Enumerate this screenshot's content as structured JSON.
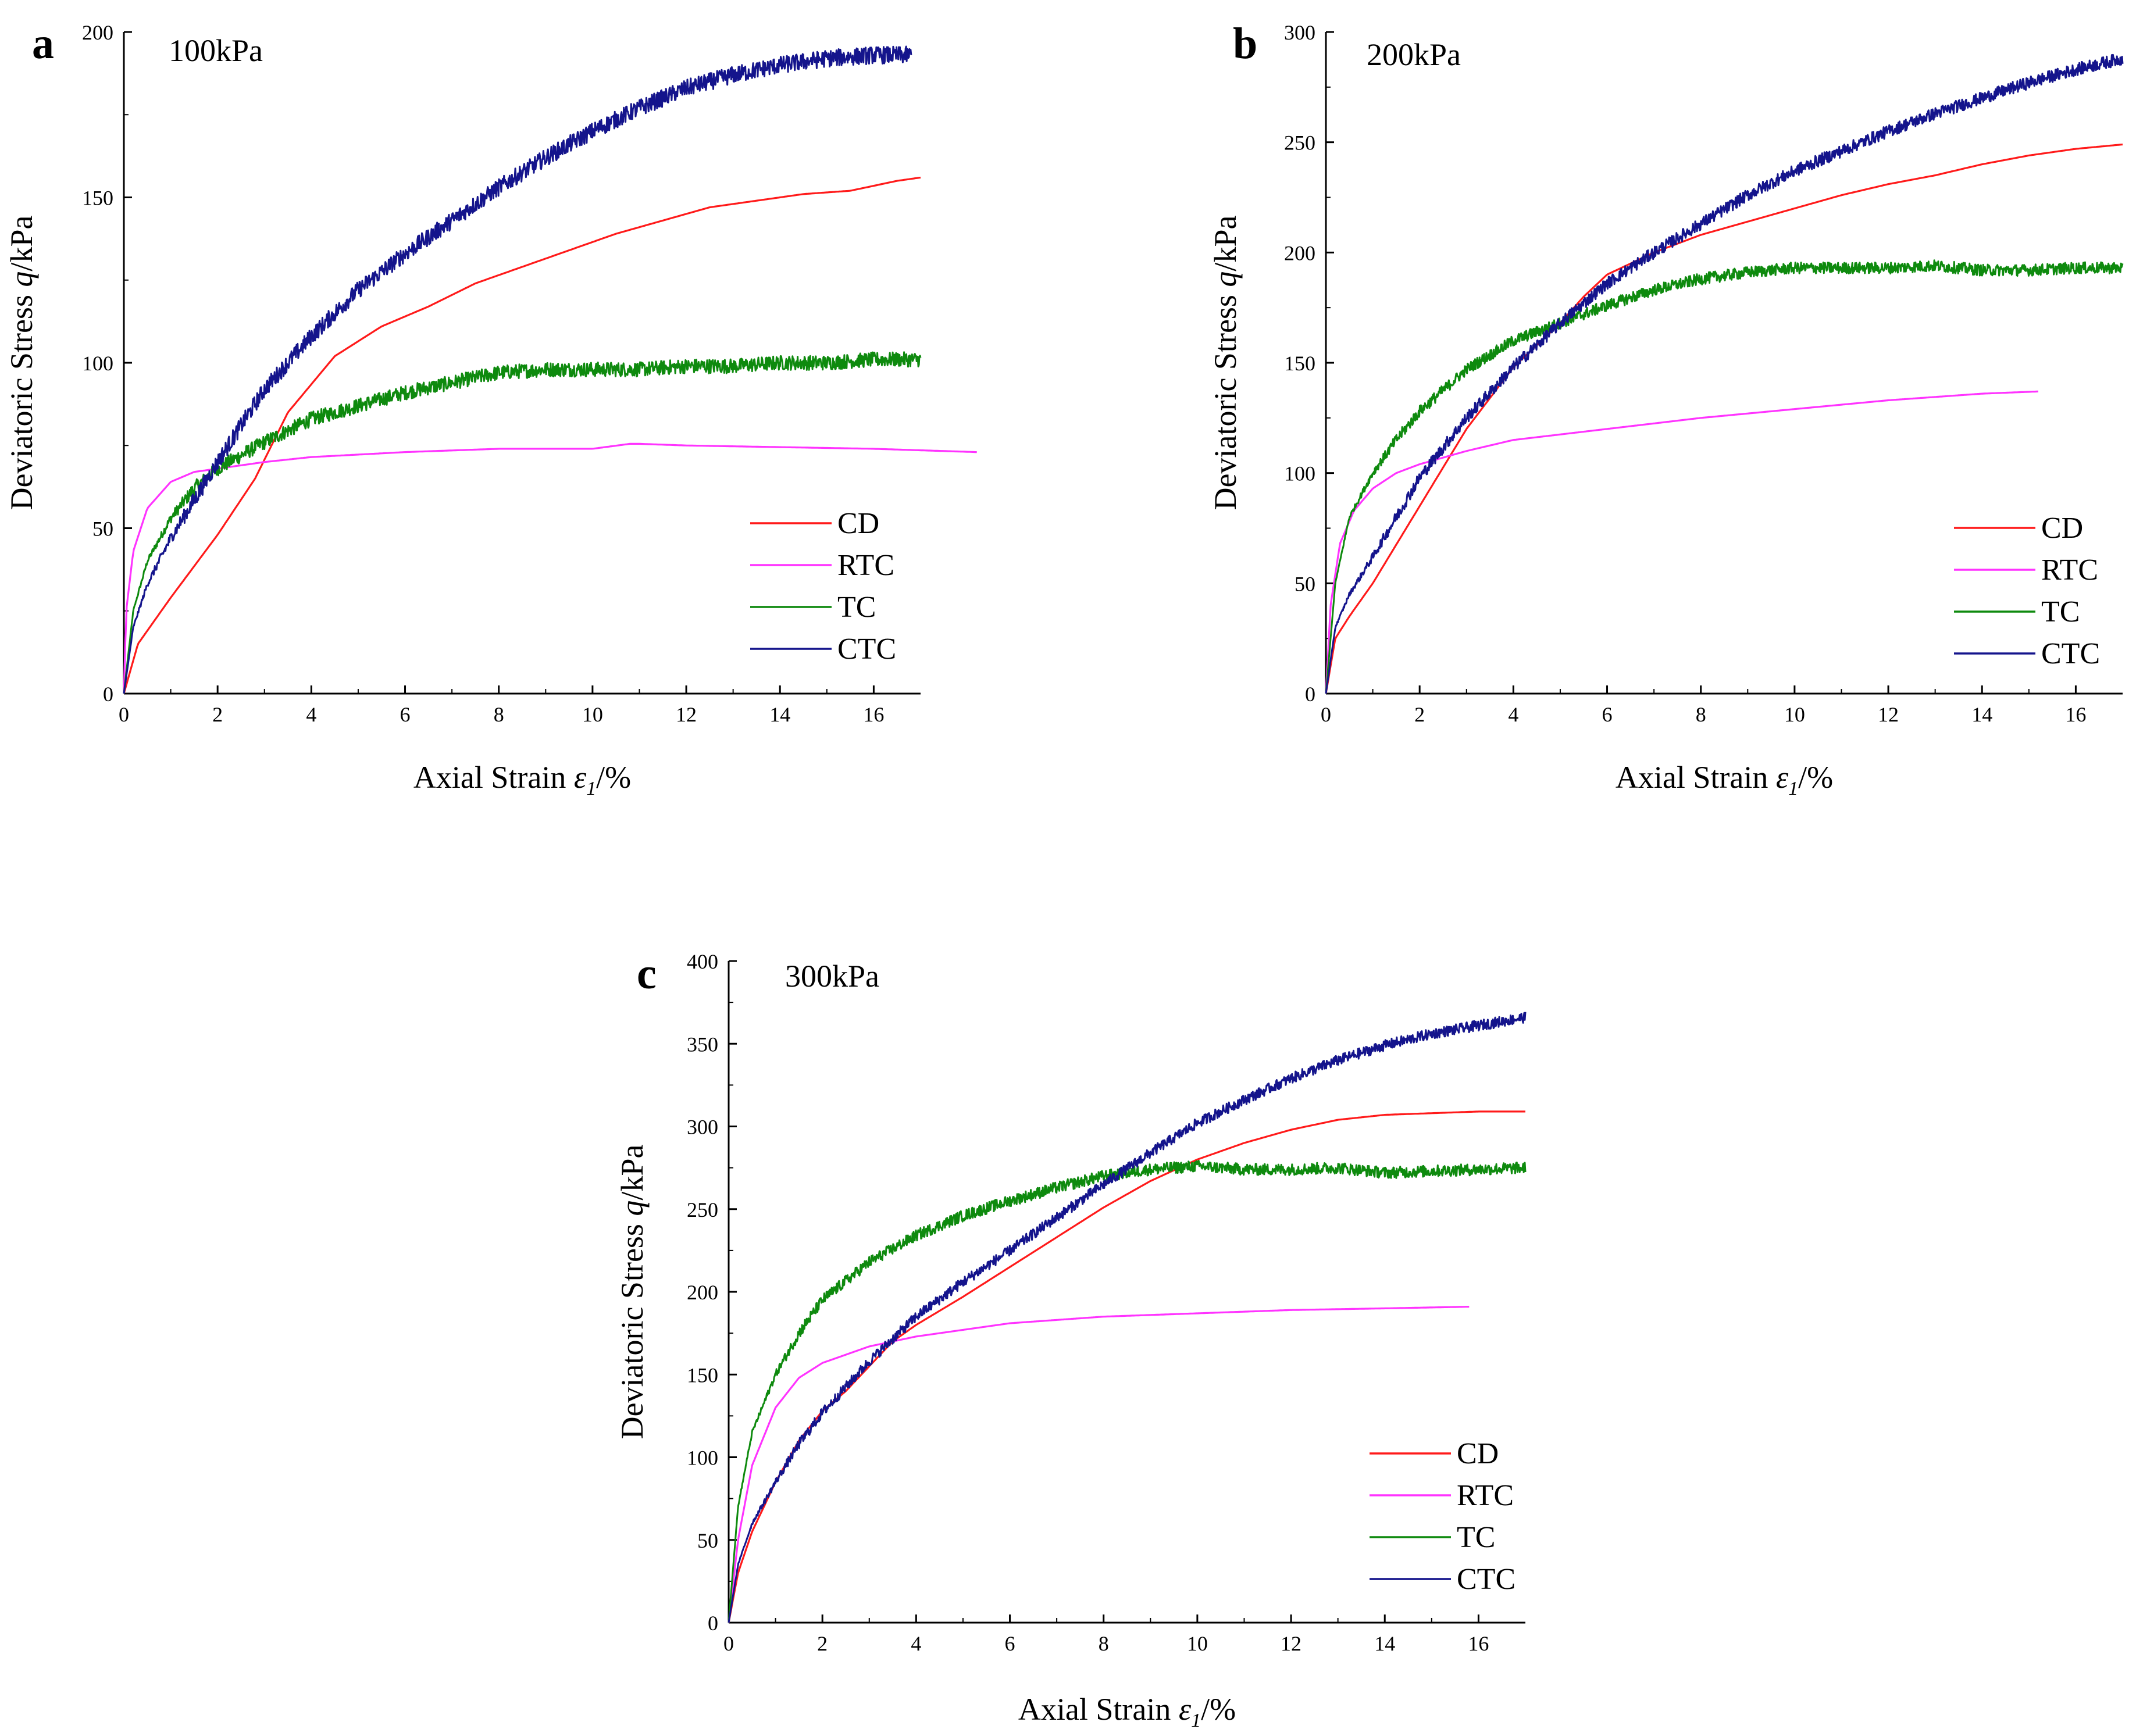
{
  "colors": {
    "CD": "#ff1a1a",
    "RTC": "#ff33ff",
    "TC": "#0e8a0e",
    "CTC": "#14148c"
  },
  "chart_data": [
    {
      "type": "line",
      "panel_label": "a",
      "title": "100kPa",
      "xlabel_prefix": "Axial Strain",
      "xlabel_symbol": "ε",
      "xlabel_sub": "1",
      "xlabel_suffix": "/%",
      "ylabel_prefix": "Deviatoric Stress",
      "ylabel_symbol": "q",
      "ylabel_suffix": "/kPa",
      "xlim": [
        0,
        17
      ],
      "ylim": [
        0,
        200
      ],
      "xticks": [
        0,
        2,
        4,
        6,
        8,
        10,
        12,
        14,
        16
      ],
      "yticks": [
        0,
        50,
        100,
        150,
        200
      ],
      "legend": [
        "CD",
        "RTC",
        "TC",
        "CTC"
      ],
      "series": [
        {
          "name": "CD",
          "noise": 0,
          "x": [
            0,
            0.3,
            1,
            2,
            2.8,
            3.5,
            4.5,
            5.5,
            6.5,
            7.5,
            8.5,
            9.5,
            10.5,
            11.5,
            12.5,
            13.5,
            14.5,
            15.5,
            16.5,
            17
          ],
          "y": [
            0,
            15,
            29,
            48,
            65,
            85,
            102,
            111,
            117,
            124,
            129,
            134,
            139,
            143,
            147,
            149,
            151,
            152,
            155,
            156
          ]
        },
        {
          "name": "RTC",
          "noise": 0,
          "x": [
            0,
            0.05,
            0.2,
            0.5,
            1,
            1.5,
            2,
            3,
            4,
            6,
            8,
            10,
            10.8,
            11,
            12,
            14,
            16,
            18.2
          ],
          "y": [
            0,
            25,
            43,
            56,
            64,
            67,
            68,
            70,
            71.5,
            73,
            74,
            74,
            75.5,
            75.5,
            75,
            74.5,
            74,
            73
          ]
        },
        {
          "name": "TC",
          "noise": 2.2,
          "x": [
            0,
            0.2,
            0.5,
            1,
            1.5,
            2,
            3,
            4,
            5,
            6,
            7,
            8,
            9,
            10,
            11,
            12,
            13,
            14,
            15,
            16,
            17
          ],
          "y": [
            0,
            25,
            40,
            53,
            62,
            68,
            76,
            83,
            87,
            91,
            94,
            97,
            98,
            98,
            98,
            99,
            99,
            100,
            100,
            101,
            101
          ]
        },
        {
          "name": "CTC",
          "noise": 2.6,
          "x": [
            0,
            0.2,
            0.5,
            1,
            2,
            3,
            4,
            5,
            6,
            7,
            8,
            9,
            10,
            11,
            12,
            13,
            14,
            15,
            16,
            16.8
          ],
          "y": [
            0,
            20,
            33,
            47,
            70,
            92,
            108,
            122,
            133,
            143,
            153,
            162,
            170,
            177,
            183,
            187,
            190,
            192,
            193,
            193
          ]
        }
      ]
    },
    {
      "type": "line",
      "panel_label": "b",
      "title": "200kPa",
      "xlabel_prefix": "Axial Strain",
      "xlabel_symbol": "ε",
      "xlabel_sub": "1",
      "xlabel_suffix": "/%",
      "ylabel_prefix": "Deviatoric Stress",
      "ylabel_symbol": "q",
      "ylabel_suffix": "/kPa",
      "xlim": [
        0,
        17
      ],
      "ylim": [
        0,
        300
      ],
      "xticks": [
        0,
        2,
        4,
        6,
        8,
        10,
        12,
        14,
        16
      ],
      "yticks": [
        0,
        50,
        100,
        150,
        200,
        250,
        300
      ],
      "legend": [
        "CD",
        "RTC",
        "TC",
        "CTC"
      ],
      "series": [
        {
          "name": "CD",
          "noise": 0,
          "x": [
            0,
            0.2,
            0.5,
            1,
            2,
            3,
            4,
            5,
            5.5,
            6,
            7,
            8,
            9,
            10,
            11,
            12,
            13,
            14,
            15,
            16,
            17
          ],
          "y": [
            0,
            25,
            35,
            50,
            85,
            120,
            148,
            168,
            180,
            190,
            200,
            208,
            214,
            220,
            226,
            231,
            235,
            240,
            244,
            247,
            249
          ]
        },
        {
          "name": "RTC",
          "noise": 0,
          "x": [
            0,
            0.1,
            0.3,
            0.6,
            1,
            1.5,
            2,
            3,
            4,
            6,
            8,
            10,
            12,
            14,
            15.2
          ],
          "y": [
            0,
            40,
            68,
            83,
            93,
            100,
            104,
            110,
            115,
            120,
            125,
            129,
            133,
            136,
            137
          ]
        },
        {
          "name": "TC",
          "noise": 2.6,
          "x": [
            0,
            0.2,
            0.5,
            1,
            1.5,
            2,
            3,
            4,
            5,
            6,
            7,
            8,
            9,
            10,
            11,
            12,
            13,
            14,
            15,
            16,
            17
          ],
          "y": [
            0,
            50,
            80,
            100,
            115,
            128,
            147,
            160,
            168,
            176,
            183,
            188,
            191,
            193,
            193,
            193,
            194,
            192,
            192,
            193,
            193
          ]
        },
        {
          "name": "CTC",
          "noise": 2.8,
          "x": [
            0,
            0.2,
            0.5,
            1,
            2,
            3,
            4,
            5,
            6,
            7,
            8,
            9,
            10,
            11,
            12,
            13,
            14,
            15,
            16,
            17
          ],
          "y": [
            0,
            30,
            45,
            62,
            98,
            125,
            148,
            168,
            186,
            200,
            213,
            226,
            237,
            246,
            255,
            263,
            270,
            277,
            283,
            288
          ]
        }
      ]
    },
    {
      "type": "line",
      "panel_label": "c",
      "title": "300kPa",
      "xlabel_prefix": "Axial Strain",
      "xlabel_symbol": "ε",
      "xlabel_sub": "1",
      "xlabel_suffix": "/%",
      "ylabel_prefix": "Deviatoric Stress",
      "ylabel_symbol": "q",
      "ylabel_suffix": "/kPa",
      "xlim": [
        0,
        17
      ],
      "ylim": [
        0,
        400
      ],
      "xticks": [
        0,
        2,
        4,
        6,
        8,
        10,
        12,
        14,
        16
      ],
      "yticks": [
        0,
        50,
        100,
        150,
        200,
        250,
        300,
        350,
        400
      ],
      "legend": [
        "CD",
        "RTC",
        "TC",
        "CTC"
      ],
      "series": [
        {
          "name": "CD",
          "noise": 0,
          "x": [
            0,
            0.2,
            0.5,
            1,
            1.5,
            2,
            2.5,
            3,
            3.5,
            4,
            5,
            6,
            7,
            8,
            9,
            10,
            11,
            12,
            13,
            14,
            15,
            16,
            17
          ],
          "y": [
            0,
            30,
            55,
            85,
            110,
            128,
            140,
            155,
            170,
            180,
            197,
            215,
            233,
            251,
            267,
            280,
            290,
            298,
            304,
            307,
            308,
            309,
            309
          ]
        },
        {
          "name": "RTC",
          "noise": 0,
          "x": [
            0,
            0.2,
            0.5,
            1,
            1.5,
            2,
            3,
            4,
            5,
            6,
            8,
            10,
            12,
            14,
            15.8
          ],
          "y": [
            0,
            50,
            95,
            130,
            148,
            157,
            167,
            173,
            177,
            181,
            185,
            187,
            189,
            190,
            191
          ]
        },
        {
          "name": "TC",
          "noise": 3.5,
          "x": [
            0,
            0.2,
            0.5,
            1,
            1.5,
            2,
            3,
            4,
            5,
            6,
            7,
            8,
            9,
            10,
            11,
            12,
            13,
            14,
            15,
            16,
            17
          ],
          "y": [
            0,
            70,
            115,
            150,
            175,
            195,
            218,
            234,
            246,
            255,
            263,
            270,
            274,
            276,
            274,
            274,
            275,
            272,
            273,
            274,
            275
          ]
        },
        {
          "name": "CTC",
          "noise": 3.2,
          "x": [
            0,
            0.2,
            0.5,
            1,
            1.5,
            2,
            3,
            4,
            5,
            6,
            7,
            8,
            9,
            10,
            11,
            12,
            13,
            14,
            15,
            16,
            17
          ],
          "y": [
            0,
            35,
            60,
            85,
            108,
            127,
            158,
            185,
            206,
            225,
            245,
            265,
            284,
            302,
            316,
            329,
            340,
            349,
            356,
            361,
            366
          ]
        }
      ]
    }
  ]
}
